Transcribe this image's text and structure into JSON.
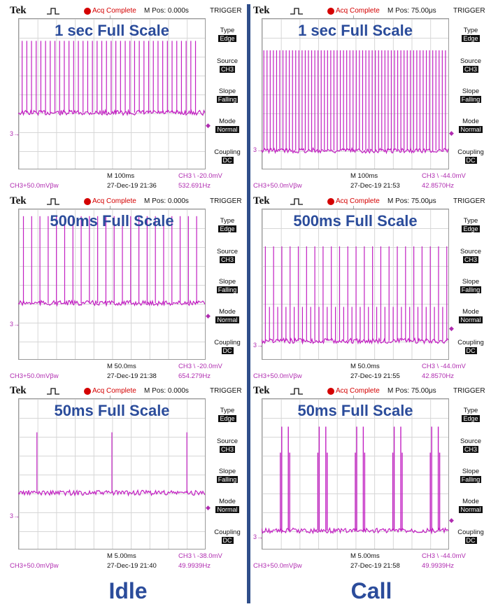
{
  "columns": [
    {
      "caption": "Idle",
      "scopes": [
        {
          "brand": "Tek",
          "acq_status": "Acq Complete",
          "mpos": "M Pos: 0.000s",
          "trigger_title": "TRIGGER",
          "full_scale_label": "1 sec Full Scale",
          "menu": [
            {
              "label": "Type",
              "value": "Edge"
            },
            {
              "label": "Source",
              "value": "CH3"
            },
            {
              "label": "Slope",
              "value": "Falling"
            },
            {
              "label": "Mode",
              "value": "Normal"
            },
            {
              "label": "Coupling",
              "value": "DC"
            }
          ],
          "timebase": "M 100ms",
          "trigger_level": "CH3 \\ -20.0mV",
          "channel_scale": "CH3+50.0mVβw",
          "datetime": "27-Dec-19 21:36",
          "frequency": "532.691Hz"
        },
        {
          "brand": "Tek",
          "acq_status": "Acq Complete",
          "mpos": "M Pos: 0.000s",
          "trigger_title": "TRIGGER",
          "full_scale_label": "500ms Full Scale",
          "menu": [
            {
              "label": "Type",
              "value": "Edge"
            },
            {
              "label": "Source",
              "value": "CH3"
            },
            {
              "label": "Slope",
              "value": "Falling"
            },
            {
              "label": "Mode",
              "value": "Normal"
            },
            {
              "label": "Coupling",
              "value": "DC"
            }
          ],
          "timebase": "M 50.0ms",
          "trigger_level": "CH3 \\ -20.0mV",
          "channel_scale": "CH3+50.0mVβw",
          "datetime": "27-Dec-19 21:38",
          "frequency": "654.279Hz"
        },
        {
          "brand": "Tek",
          "acq_status": "Acq Complete",
          "mpos": "M Pos: 0.000s",
          "trigger_title": "TRIGGER",
          "full_scale_label": "50ms Full Scale",
          "menu": [
            {
              "label": "Type",
              "value": "Edge"
            },
            {
              "label": "Source",
              "value": "CH3"
            },
            {
              "label": "Slope",
              "value": "Falling"
            },
            {
              "label": "Mode",
              "value": "Normal"
            },
            {
              "label": "Coupling",
              "value": "DC"
            }
          ],
          "timebase": "M 5.00ms",
          "trigger_level": "CH3 \\ -38.0mV",
          "channel_scale": "CH3+50.0mVβw",
          "datetime": "27-Dec-19 21:40",
          "frequency": "49.9939Hz"
        }
      ]
    },
    {
      "caption": "Call",
      "scopes": [
        {
          "brand": "Tek",
          "acq_status": "Acq Complete",
          "mpos": "M Pos: 75.00μs",
          "trigger_title": "TRIGGER",
          "full_scale_label": "1 sec Full Scale",
          "menu": [
            {
              "label": "Type",
              "value": "Edge"
            },
            {
              "label": "Source",
              "value": "CH3"
            },
            {
              "label": "Slope",
              "value": "Falling"
            },
            {
              "label": "Mode",
              "value": "Normal"
            },
            {
              "label": "Coupling",
              "value": "DC"
            }
          ],
          "timebase": "M 100ms",
          "trigger_level": "CH3 \\ -44.0mV",
          "channel_scale": "CH3+50.0mVβw",
          "datetime": "27-Dec-19 21:53",
          "frequency": "42.8570Hz"
        },
        {
          "brand": "Tek",
          "acq_status": "Acq Complete",
          "mpos": "M Pos: 75.00μs",
          "trigger_title": "TRIGGER",
          "full_scale_label": "500ms Full Scale",
          "menu": [
            {
              "label": "Type",
              "value": "Edge"
            },
            {
              "label": "Source",
              "value": "CH3"
            },
            {
              "label": "Slope",
              "value": "Falling"
            },
            {
              "label": "Mode",
              "value": "Normal"
            },
            {
              "label": "Coupling",
              "value": "DC"
            }
          ],
          "timebase": "M 50.0ms",
          "trigger_level": "CH3 \\ -44.0mV",
          "channel_scale": "CH3+50.0mVβw",
          "datetime": "27-Dec-19 21:55",
          "frequency": "42.8570Hz"
        },
        {
          "brand": "Tek",
          "acq_status": "Acq Complete",
          "mpos": "M Pos: 75.00μs",
          "trigger_title": "TRIGGER",
          "full_scale_label": "50ms Full Scale",
          "menu": [
            {
              "label": "Type",
              "value": "Edge"
            },
            {
              "label": "Source",
              "value": "CH3"
            },
            {
              "label": "Slope",
              "value": "Falling"
            },
            {
              "label": "Mode",
              "value": "Normal"
            },
            {
              "label": "Coupling",
              "value": "DC"
            }
          ],
          "timebase": "M 5.00ms",
          "trigger_level": "CH3 \\ -44.0mV",
          "channel_scale": "CH3+50.0mVβw",
          "datetime": "27-Dec-19 21:58",
          "frequency": "49.9939Hz"
        }
      ]
    }
  ],
  "colors": {
    "trace": "#c21fc2",
    "caption": "#2b4c9b",
    "divider": "#2f4e8a",
    "acq": "#d40000"
  },
  "chart_data": [
    {
      "type": "line",
      "panel": "Idle / 1 sec Full Scale",
      "x_unit": "ms",
      "x_range": [
        0,
        1000
      ],
      "y_unit": "div",
      "y_range": [
        -4,
        4
      ],
      "baseline": -1.0,
      "pulse_height": 3.8,
      "pulse_count": 38,
      "pulse_times": [
        21,
        46,
        71,
        96,
        121,
        146,
        171,
        196,
        221,
        246,
        271,
        296,
        321,
        346,
        371,
        396,
        421,
        446,
        471,
        496,
        521,
        546,
        571,
        596,
        621,
        646,
        671,
        696,
        721,
        746,
        771,
        796,
        821,
        846,
        871,
        896,
        921,
        946
      ]
    },
    {
      "type": "line",
      "panel": "Idle / 500ms Full Scale",
      "x_unit": "ms",
      "x_range": [
        0,
        500
      ],
      "y_unit": "div",
      "y_range": [
        -4,
        4
      ],
      "baseline": -1.0,
      "pulse_height": 4.6,
      "pulse_count": 22,
      "pulse_times": [
        14,
        36,
        58,
        80,
        102,
        124,
        146,
        168,
        190,
        212,
        234,
        256,
        278,
        300,
        322,
        344,
        366,
        388,
        410,
        432,
        454,
        476
      ]
    },
    {
      "type": "line",
      "panel": "Idle / 50ms Full Scale",
      "x_unit": "ms",
      "x_range": [
        0,
        50
      ],
      "y_unit": "div",
      "y_range": [
        -4,
        4
      ],
      "baseline": -1.0,
      "pulse_height": 3.2,
      "pulse_count": 3,
      "pulse_times": [
        5,
        25,
        45
      ]
    },
    {
      "type": "line",
      "panel": "Call / 1 sec Full Scale",
      "x_unit": "ms",
      "x_range": [
        0,
        1000
      ],
      "y_unit": "div",
      "y_range": [
        -4,
        4
      ],
      "baseline": -3.0,
      "pulse_height": 5.3,
      "pulse_count": 58,
      "pulse_times": [
        12,
        29,
        46,
        63,
        80,
        97,
        114,
        131,
        148,
        165,
        182,
        199,
        216,
        233,
        250,
        267,
        284,
        301,
        318,
        335,
        352,
        369,
        386,
        403,
        420,
        437,
        454,
        471,
        488,
        505,
        522,
        539,
        556,
        573,
        590,
        607,
        624,
        641,
        658,
        675,
        692,
        709,
        726,
        743,
        760,
        777,
        794,
        811,
        828,
        845,
        862,
        879,
        896,
        913,
        930,
        947,
        964,
        981
      ]
    },
    {
      "type": "line",
      "panel": "Call / 500ms Full Scale",
      "x_unit": "ms",
      "x_range": [
        0,
        500
      ],
      "y_unit": "div",
      "y_range": [
        -4,
        4
      ],
      "baseline": -3.0,
      "tall_pulse_height": 5.0,
      "short_pulse_height": 1.8,
      "pulse_times": [
        10,
        21,
        32,
        43,
        54,
        65,
        76,
        87,
        98,
        109,
        120,
        131,
        142,
        153,
        164,
        175,
        186,
        197,
        208,
        219,
        230,
        241,
        252,
        263,
        274,
        285,
        296,
        307,
        318,
        329,
        340,
        351,
        362,
        373,
        384,
        395,
        406,
        417,
        428,
        439,
        450,
        461,
        472,
        483,
        494
      ]
    },
    {
      "type": "line",
      "panel": "Call / 50ms Full Scale",
      "x_unit": "ms",
      "x_range": [
        0,
        50
      ],
      "y_unit": "div",
      "y_range": [
        -4,
        4
      ],
      "baseline": -3.0,
      "pulse_height": 5.5,
      "burst_times": [
        5,
        15,
        25,
        35,
        45
      ],
      "burst_width_ms": 2.5
    }
  ]
}
